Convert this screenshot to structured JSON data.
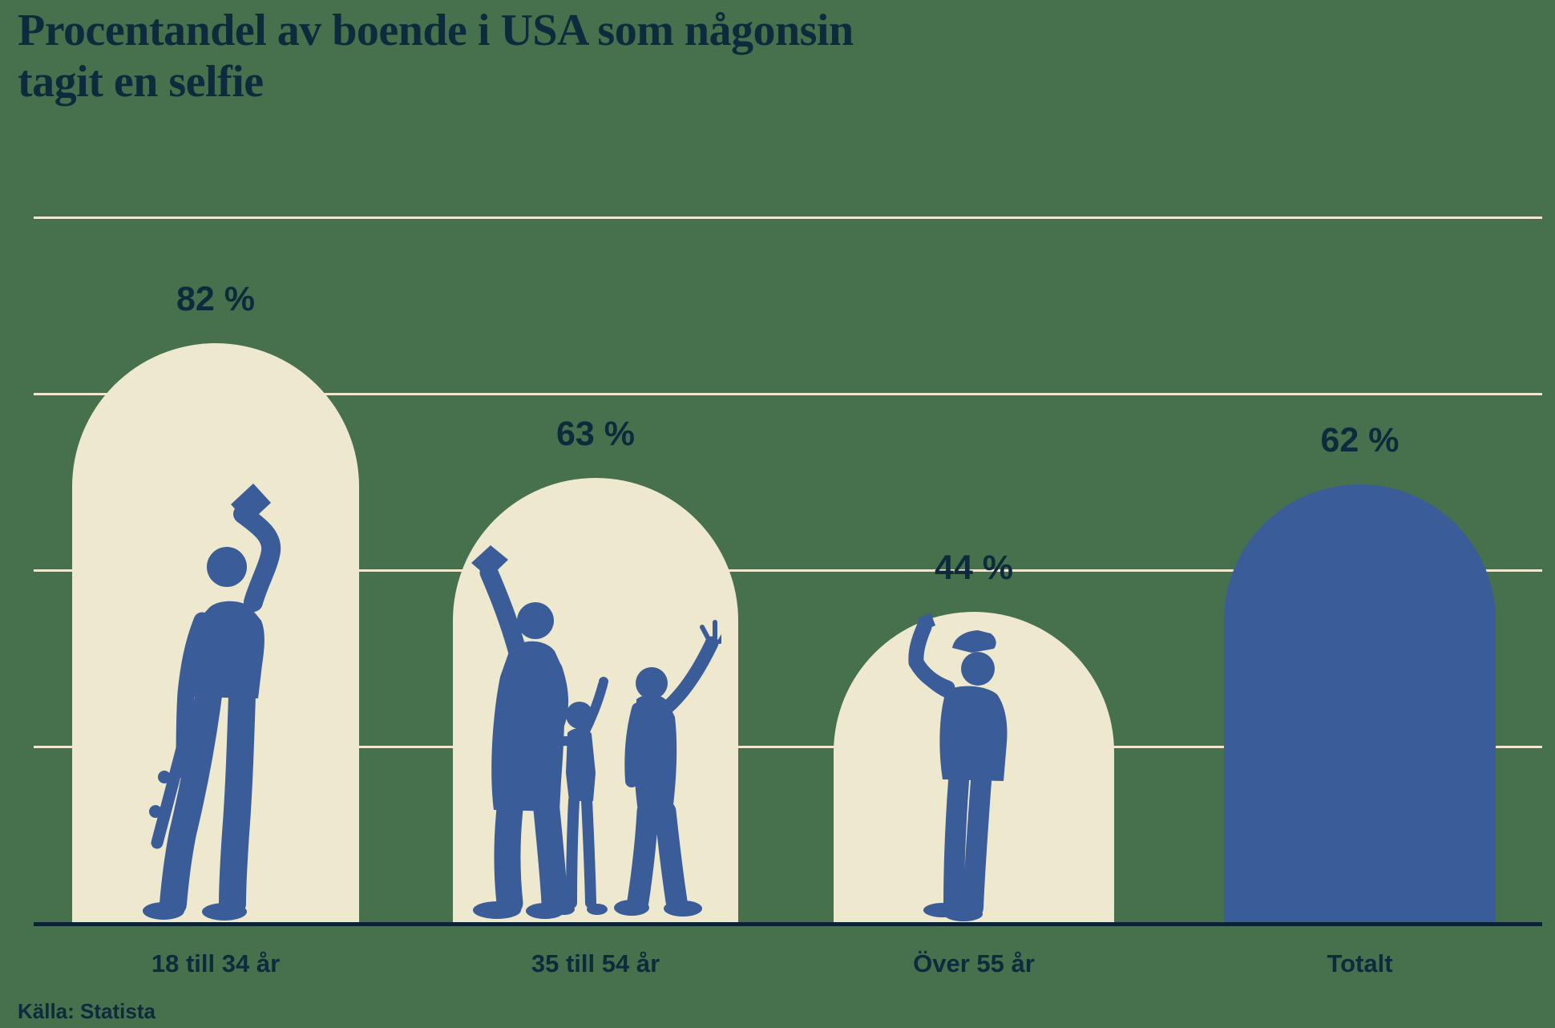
{
  "title": {
    "line1": "Procentandel av boende i USA som någonsin",
    "line2": "tagit en selfie"
  },
  "source": "Källa: Statista",
  "colors": {
    "background": "#47704D",
    "bar_cream": "#EEE9CE",
    "bar_blue": "#3A5C98",
    "text_navy": "#0E2A3D",
    "axis_navy": "#0B2233",
    "gridline": "#EEE9CE"
  },
  "chart_data": {
    "type": "bar",
    "title": "Procentandel av boende i USA som någonsin tagit en selfie",
    "categories": [
      "18 till 34 år",
      "35 till 54 år",
      "Över 55 år",
      "Totalt"
    ],
    "values": [
      82,
      63,
      44,
      62
    ],
    "value_labels": [
      "82 %",
      "63 %",
      "44 %",
      "62 %"
    ],
    "unit": "%",
    "ylim": [
      0,
      100
    ],
    "gridline_step": 25,
    "grid": "horizontal",
    "legend": "none",
    "bar_shape": "arch",
    "bar_colors": [
      "#EEE9CE",
      "#EEE9CE",
      "#EEE9CE",
      "#3A5C98"
    ],
    "silhouettes": [
      "young-man-with-skateboard-taking-selfie",
      "family-taking-selfie-and-waving",
      "older-man-with-flat-cap-taking-selfie",
      "none"
    ],
    "source": "Källa: Statista"
  }
}
